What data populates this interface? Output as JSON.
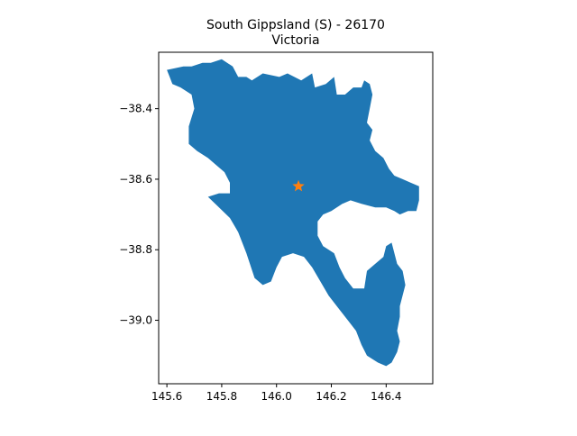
{
  "map": {
    "title_line1": "South Gippsland (S) - 26170",
    "title_line2": "Victoria",
    "region_color": "#1f77b4",
    "marker_color": "#ff7f0e",
    "marker_shape": "star",
    "marker_location": {
      "lon": 146.08,
      "lat": -38.62
    },
    "xlim": [
      145.57,
      146.57
    ],
    "ylim": [
      -39.18,
      -38.24
    ],
    "x_ticks": [
      {
        "value": 145.6,
        "label": "145.6"
      },
      {
        "value": 145.8,
        "label": "145.8"
      },
      {
        "value": 146.0,
        "label": "146.0"
      },
      {
        "value": 146.2,
        "label": "146.2"
      },
      {
        "value": 146.4,
        "label": "146.4"
      }
    ],
    "y_ticks": [
      {
        "value": -38.4,
        "label": "−38.4"
      },
      {
        "value": -38.6,
        "label": "−38.6"
      },
      {
        "value": -38.8,
        "label": "−38.8"
      },
      {
        "value": -39.0,
        "label": "−39.0"
      }
    ],
    "region_outline_lonlat": [
      [
        145.61,
        -38.31
      ],
      [
        145.6,
        -38.29
      ],
      [
        145.66,
        -38.28
      ],
      [
        145.69,
        -38.28
      ],
      [
        145.73,
        -38.27
      ],
      [
        145.76,
        -38.27
      ],
      [
        145.8,
        -38.26
      ],
      [
        145.84,
        -38.28
      ],
      [
        145.86,
        -38.31
      ],
      [
        145.89,
        -38.31
      ],
      [
        145.91,
        -38.32
      ],
      [
        145.95,
        -38.3
      ],
      [
        146.01,
        -38.31
      ],
      [
        146.04,
        -38.3
      ],
      [
        146.09,
        -38.32
      ],
      [
        146.13,
        -38.3
      ],
      [
        146.14,
        -38.34
      ],
      [
        146.18,
        -38.33
      ],
      [
        146.21,
        -38.31
      ],
      [
        146.22,
        -38.36
      ],
      [
        146.25,
        -38.36
      ],
      [
        146.28,
        -38.34
      ],
      [
        146.31,
        -38.34
      ],
      [
        146.32,
        -38.32
      ],
      [
        146.34,
        -38.33
      ],
      [
        146.35,
        -38.36
      ],
      [
        146.34,
        -38.4
      ],
      [
        146.33,
        -38.44
      ],
      [
        146.35,
        -38.46
      ],
      [
        146.34,
        -38.49
      ],
      [
        146.36,
        -38.52
      ],
      [
        146.39,
        -38.54
      ],
      [
        146.41,
        -38.57
      ],
      [
        146.43,
        -38.59
      ],
      [
        146.46,
        -38.6
      ],
      [
        146.49,
        -38.61
      ],
      [
        146.52,
        -38.62
      ],
      [
        146.52,
        -38.66
      ],
      [
        146.51,
        -38.69
      ],
      [
        146.48,
        -38.69
      ],
      [
        146.45,
        -38.7
      ],
      [
        146.43,
        -38.69
      ],
      [
        146.4,
        -38.68
      ],
      [
        146.36,
        -38.68
      ],
      [
        146.31,
        -38.67
      ],
      [
        146.27,
        -38.66
      ],
      [
        146.24,
        -38.67
      ],
      [
        146.2,
        -38.69
      ],
      [
        146.17,
        -38.7
      ],
      [
        146.15,
        -38.72
      ],
      [
        146.15,
        -38.76
      ],
      [
        146.17,
        -38.79
      ],
      [
        146.21,
        -38.81
      ],
      [
        146.23,
        -38.85
      ],
      [
        146.25,
        -38.88
      ],
      [
        146.28,
        -38.91
      ],
      [
        146.32,
        -38.91
      ],
      [
        146.33,
        -38.86
      ],
      [
        146.36,
        -38.84
      ],
      [
        146.39,
        -38.82
      ],
      [
        146.4,
        -38.79
      ],
      [
        146.42,
        -38.78
      ],
      [
        146.44,
        -38.84
      ],
      [
        146.46,
        -38.86
      ],
      [
        146.47,
        -38.9
      ],
      [
        146.45,
        -38.96
      ],
      [
        146.45,
        -38.99
      ],
      [
        146.44,
        -39.03
      ],
      [
        146.45,
        -39.06
      ],
      [
        146.44,
        -39.09
      ],
      [
        146.42,
        -39.12
      ],
      [
        146.4,
        -39.13
      ],
      [
        146.37,
        -39.12
      ],
      [
        146.33,
        -39.1
      ],
      [
        146.31,
        -39.07
      ],
      [
        146.29,
        -39.03
      ],
      [
        146.26,
        -39.0
      ],
      [
        146.23,
        -38.97
      ],
      [
        146.19,
        -38.93
      ],
      [
        146.16,
        -38.89
      ],
      [
        146.13,
        -38.85
      ],
      [
        146.1,
        -38.82
      ],
      [
        146.06,
        -38.81
      ],
      [
        146.02,
        -38.82
      ],
      [
        146.0,
        -38.85
      ],
      [
        145.98,
        -38.89
      ],
      [
        145.95,
        -38.9
      ],
      [
        145.92,
        -38.88
      ],
      [
        145.89,
        -38.81
      ],
      [
        145.86,
        -38.75
      ],
      [
        145.83,
        -38.71
      ],
      [
        145.79,
        -38.68
      ],
      [
        145.75,
        -38.65
      ],
      [
        145.79,
        -38.64
      ],
      [
        145.83,
        -38.64
      ],
      [
        145.83,
        -38.61
      ],
      [
        145.81,
        -38.58
      ],
      [
        145.78,
        -38.56
      ],
      [
        145.75,
        -38.54
      ],
      [
        145.71,
        -38.52
      ],
      [
        145.68,
        -38.5
      ],
      [
        145.68,
        -38.45
      ],
      [
        145.7,
        -38.4
      ],
      [
        145.69,
        -38.36
      ],
      [
        145.65,
        -38.34
      ],
      [
        145.62,
        -38.33
      ]
    ]
  }
}
